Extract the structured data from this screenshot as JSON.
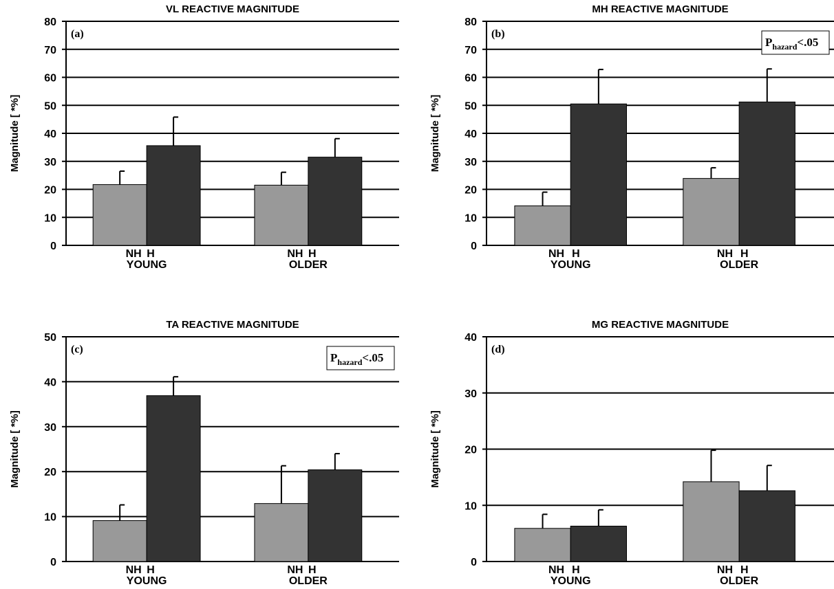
{
  "chart_data": [
    {
      "type": "bar",
      "title": "VL REACTIVE MAGNITUDE",
      "panel_label": "(a)",
      "ylabel": "Magnitude [ *%]",
      "ylim": [
        0,
        80
      ],
      "ytick_step": 10,
      "groups": [
        "YOUNG",
        "OLDER"
      ],
      "categories": [
        "NH",
        "H"
      ],
      "series": [
        {
          "values": [
            21.7,
            21.5
          ],
          "errors": [
            4.8,
            4.6
          ],
          "color": "#999999"
        },
        {
          "values": [
            35.6,
            31.5
          ],
          "errors": [
            10.2,
            6.6
          ],
          "color": "#333333"
        }
      ],
      "annotation": null
    },
    {
      "type": "bar",
      "title": "MH REACTIVE MAGNITUDE",
      "panel_label": "(b)",
      "ylabel": "Magnitude [ *%]",
      "ylim": [
        0,
        80
      ],
      "ytick_step": 10,
      "groups": [
        "YOUNG",
        "OLDER"
      ],
      "categories": [
        "NH",
        "H"
      ],
      "series": [
        {
          "values": [
            14.1,
            23.9
          ],
          "errors": [
            4.9,
            3.8
          ],
          "color": "#999999"
        },
        {
          "values": [
            50.5,
            51.2
          ],
          "errors": [
            12.3,
            11.8
          ],
          "color": "#333333"
        }
      ],
      "annotation": {
        "main": "P",
        "sub": "hazard",
        "rest": "<.05"
      }
    },
    {
      "type": "bar",
      "title": "TA REACTIVE MAGNITUDE",
      "panel_label": "(c)",
      "ylabel": "Magnitude [ *%]",
      "ylim": [
        0,
        50
      ],
      "ytick_step": 10,
      "groups": [
        "YOUNG",
        "OLDER"
      ],
      "categories": [
        "NH",
        "H"
      ],
      "series": [
        {
          "values": [
            9.1,
            12.9
          ],
          "errors": [
            3.5,
            8.4
          ],
          "color": "#999999"
        },
        {
          "values": [
            36.9,
            20.4
          ],
          "errors": [
            4.2,
            3.6
          ],
          "color": "#333333"
        }
      ],
      "annotation": {
        "main": "P",
        "sub": "hazard",
        "rest": "<.05"
      }
    },
    {
      "type": "bar",
      "title": "MG REACTIVE MAGNITUDE",
      "panel_label": "(d)",
      "ylabel": "Magnitude [ *%]",
      "ylim": [
        0,
        40
      ],
      "ytick_step": 10,
      "groups": [
        "YOUNG",
        "OLDER"
      ],
      "categories": [
        "NH",
        "H"
      ],
      "series": [
        {
          "values": [
            5.9,
            14.2
          ],
          "errors": [
            2.5,
            5.6
          ],
          "color": "#999999"
        },
        {
          "values": [
            6.3,
            12.6
          ],
          "errors": [
            2.9,
            4.5
          ],
          "color": "#333333"
        }
      ],
      "annotation": null
    }
  ]
}
